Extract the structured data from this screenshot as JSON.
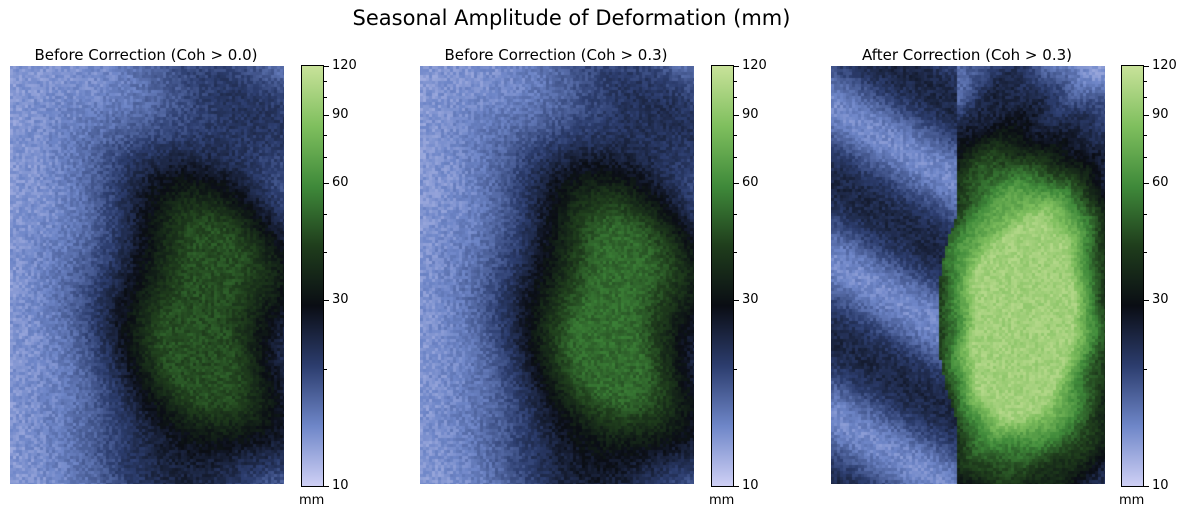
{
  "chart_data": {
    "type": "heatmap",
    "title": "Seasonal Amplitude of Deformation (mm)",
    "colormap": [
      "#cfd0f5",
      "#6e86c8",
      "#2c3d6e",
      "#0a0d14",
      "#1f3d1c",
      "#3f8a3a",
      "#7fbf5e",
      "#c8e29a"
    ],
    "colorbar": {
      "scale": "log",
      "range": [
        10,
        120
      ],
      "major_ticks": [
        10,
        30,
        60,
        90,
        120
      ],
      "minor_ticks": [
        20,
        40,
        50,
        70,
        80,
        100,
        110
      ],
      "tick_labels": [
        "10",
        "30",
        "60",
        "90",
        "120"
      ],
      "unit": "mm"
    },
    "panels": [
      {
        "title": "Before Correction (Coh > 0.0)",
        "variant": "before-all"
      },
      {
        "title": "Before Correction (Coh > 0.3)",
        "variant": "before-masked"
      },
      {
        "title": "After Correction (Coh > 0.3)",
        "variant": "after"
      }
    ]
  }
}
